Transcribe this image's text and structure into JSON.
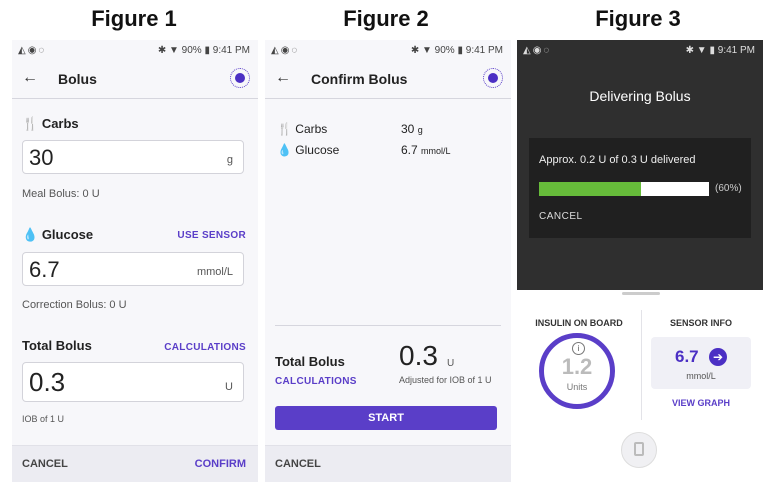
{
  "figures": [
    "Figure 1",
    "Figure 2",
    "Figure 3"
  ],
  "status": {
    "left_icons": "◭◉◌",
    "right_1": "✱ ▼ 90% ▮ 9:41 PM",
    "right_3": "✱ ▼ ▮ 9:41 PM"
  },
  "fig1": {
    "title": "Bolus",
    "carbs_label": "Carbs",
    "carbs_value": "30",
    "carbs_unit": "g",
    "meal_bolus": "Meal Bolus: 0 U",
    "glucose_label": "Glucose",
    "use_sensor": "USE SENSOR",
    "glucose_value": "6.7",
    "glucose_unit": "mmol/L",
    "correction_bolus": "Correction Bolus: 0 U",
    "total_label": "Total Bolus",
    "calculations": "CALCULATIONS",
    "total_value": "0.3",
    "total_unit": "U",
    "iob": "IOB of 1 U",
    "cancel": "CANCEL",
    "confirm": "CONFIRM"
  },
  "fig2": {
    "title": "Confirm Bolus",
    "carbs_label": "Carbs",
    "carbs_value": "30",
    "carbs_unit": "g",
    "glucose_label": "Glucose",
    "glucose_value": "6.7",
    "glucose_unit": "mmol/L",
    "total_label": "Total Bolus",
    "calculations": "CALCULATIONS",
    "total_value": "0.3",
    "total_unit": "U",
    "adjusted": "Adjusted for IOB of 1 U",
    "start": "START",
    "cancel": "CANCEL"
  },
  "fig3": {
    "title": "Delivering Bolus",
    "message": "Approx. 0.2 U of 0.3 U delivered",
    "progress": 0.6,
    "progress_text": "(60%)",
    "cancel": "CANCEL",
    "iob_label": "INSULIN ON BOARD",
    "iob_value": "1.2",
    "iob_unit": "Units",
    "info_icon": "i",
    "sensor_label": "SENSOR INFO",
    "sensor_value": "6.7",
    "sensor_unit": "mmol/L",
    "arrow_icon": "➔",
    "view_graph": "VIEW GRAPH"
  },
  "colors": {
    "accent": "#5a3ec8",
    "progress": "#66bb3a",
    "dark": "#2f2f2f"
  }
}
